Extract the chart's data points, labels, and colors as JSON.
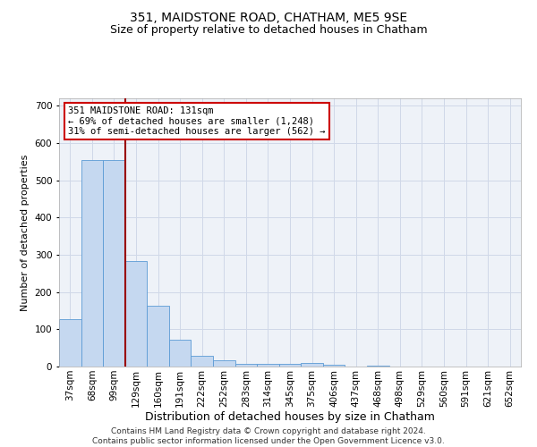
{
  "title": "351, MAIDSTONE ROAD, CHATHAM, ME5 9SE",
  "subtitle": "Size of property relative to detached houses in Chatham",
  "xlabel": "Distribution of detached houses by size in Chatham",
  "ylabel": "Number of detached properties",
  "categories": [
    "37sqm",
    "68sqm",
    "99sqm",
    "129sqm",
    "160sqm",
    "191sqm",
    "222sqm",
    "252sqm",
    "283sqm",
    "314sqm",
    "345sqm",
    "375sqm",
    "406sqm",
    "437sqm",
    "468sqm",
    "498sqm",
    "529sqm",
    "560sqm",
    "591sqm",
    "621sqm",
    "652sqm"
  ],
  "values": [
    128,
    554,
    554,
    283,
    163,
    72,
    30,
    17,
    8,
    8,
    8,
    10,
    5,
    0,
    2,
    0,
    0,
    0,
    0,
    0,
    0
  ],
  "bar_color": "#c5d8f0",
  "bar_edge_color": "#5b9bd5",
  "grid_color": "#d0d8e8",
  "bg_color": "#eef2f8",
  "vline_color": "#990000",
  "annotation_text": "351 MAIDSTONE ROAD: 131sqm\n← 69% of detached houses are smaller (1,248)\n31% of semi-detached houses are larger (562) →",
  "annotation_box_color": "#ffffff",
  "annotation_box_edge": "#cc0000",
  "ylim": [
    0,
    720
  ],
  "yticks": [
    0,
    100,
    200,
    300,
    400,
    500,
    600,
    700
  ],
  "footer": "Contains HM Land Registry data © Crown copyright and database right 2024.\nContains public sector information licensed under the Open Government Licence v3.0.",
  "title_fontsize": 10,
  "subtitle_fontsize": 9,
  "xlabel_fontsize": 9,
  "ylabel_fontsize": 8,
  "tick_fontsize": 7.5,
  "footer_fontsize": 6.5,
  "annot_fontsize": 7.5
}
